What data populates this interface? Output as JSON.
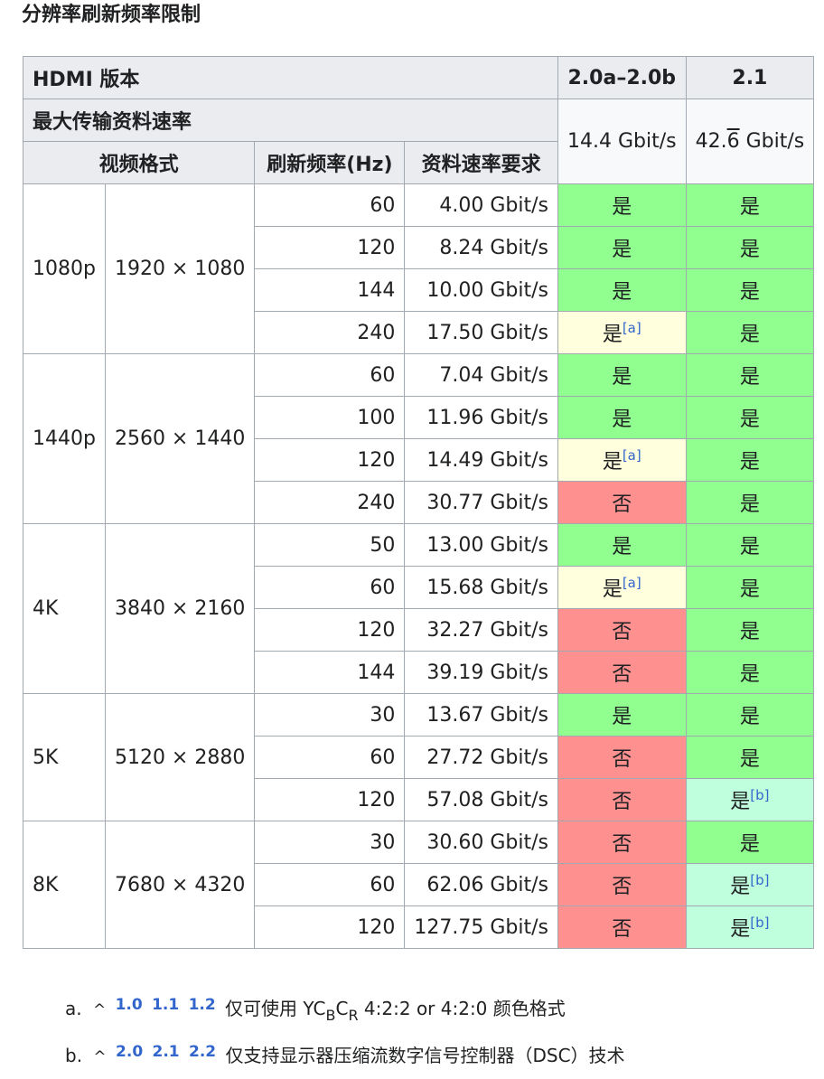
{
  "title": "分辨率刷新频率限制",
  "header": {
    "hdmi_version_label": "HDMI 版本",
    "version_a": "2.0a–2.0b",
    "version_b": "2.1",
    "max_rate_label": "最大传输资料速率",
    "rate_a": "14.4 Gbit/s",
    "rate_b_int": "42.",
    "rate_b_repeat": "6",
    "rate_b_unit": " Gbit/s",
    "video_format_label": "视频格式",
    "refresh_label": "刷新频率(Hz)",
    "data_rate_label": "资料速率要求"
  },
  "status_colors": {
    "yes": "#90ff90",
    "partial": "#ffffdd",
    "no": "#ff9090",
    "dsc": "#bfffde"
  },
  "groups": [
    {
      "format": "1080p",
      "resolution": "1920 × 1080",
      "rows": [
        {
          "hz": "60",
          "rate": "4.00 Gbit/s",
          "a": {
            "text": "是",
            "ref": "",
            "status": "yes"
          },
          "b": {
            "text": "是",
            "ref": "",
            "status": "yes"
          }
        },
        {
          "hz": "120",
          "rate": "8.24 Gbit/s",
          "a": {
            "text": "是",
            "ref": "",
            "status": "yes"
          },
          "b": {
            "text": "是",
            "ref": "",
            "status": "yes"
          }
        },
        {
          "hz": "144",
          "rate": "10.00 Gbit/s",
          "a": {
            "text": "是",
            "ref": "",
            "status": "yes"
          },
          "b": {
            "text": "是",
            "ref": "",
            "status": "yes"
          }
        },
        {
          "hz": "240",
          "rate": "17.50 Gbit/s",
          "a": {
            "text": "是",
            "ref": "[a]",
            "status": "partial"
          },
          "b": {
            "text": "是",
            "ref": "",
            "status": "yes"
          }
        }
      ]
    },
    {
      "format": "1440p",
      "resolution": "2560 × 1440",
      "rows": [
        {
          "hz": "60",
          "rate": "7.04 Gbit/s",
          "a": {
            "text": "是",
            "ref": "",
            "status": "yes"
          },
          "b": {
            "text": "是",
            "ref": "",
            "status": "yes"
          }
        },
        {
          "hz": "100",
          "rate": "11.96 Gbit/s",
          "a": {
            "text": "是",
            "ref": "",
            "status": "yes"
          },
          "b": {
            "text": "是",
            "ref": "",
            "status": "yes"
          }
        },
        {
          "hz": "120",
          "rate": "14.49 Gbit/s",
          "a": {
            "text": "是",
            "ref": "[a]",
            "status": "partial"
          },
          "b": {
            "text": "是",
            "ref": "",
            "status": "yes"
          }
        },
        {
          "hz": "240",
          "rate": "30.77 Gbit/s",
          "a": {
            "text": "否",
            "ref": "",
            "status": "no"
          },
          "b": {
            "text": "是",
            "ref": "",
            "status": "yes"
          }
        }
      ]
    },
    {
      "format": "4K",
      "resolution": "3840 × 2160",
      "rows": [
        {
          "hz": "50",
          "rate": "13.00 Gbit/s",
          "a": {
            "text": "是",
            "ref": "",
            "status": "yes"
          },
          "b": {
            "text": "是",
            "ref": "",
            "status": "yes"
          }
        },
        {
          "hz": "60",
          "rate": "15.68 Gbit/s",
          "a": {
            "text": "是",
            "ref": "[a]",
            "status": "partial"
          },
          "b": {
            "text": "是",
            "ref": "",
            "status": "yes"
          }
        },
        {
          "hz": "120",
          "rate": "32.27 Gbit/s",
          "a": {
            "text": "否",
            "ref": "",
            "status": "no"
          },
          "b": {
            "text": "是",
            "ref": "",
            "status": "yes"
          }
        },
        {
          "hz": "144",
          "rate": "39.19 Gbit/s",
          "a": {
            "text": "否",
            "ref": "",
            "status": "no"
          },
          "b": {
            "text": "是",
            "ref": "",
            "status": "yes"
          }
        }
      ]
    },
    {
      "format": "5K",
      "resolution": "5120 × 2880",
      "rows": [
        {
          "hz": "30",
          "rate": "13.67 Gbit/s",
          "a": {
            "text": "是",
            "ref": "",
            "status": "yes"
          },
          "b": {
            "text": "是",
            "ref": "",
            "status": "yes"
          }
        },
        {
          "hz": "60",
          "rate": "27.72 Gbit/s",
          "a": {
            "text": "否",
            "ref": "",
            "status": "no"
          },
          "b": {
            "text": "是",
            "ref": "",
            "status": "yes"
          }
        },
        {
          "hz": "120",
          "rate": "57.08 Gbit/s",
          "a": {
            "text": "否",
            "ref": "",
            "status": "no"
          },
          "b": {
            "text": "是",
            "ref": "[b]",
            "status": "dsc"
          }
        }
      ]
    },
    {
      "format": "8K",
      "resolution": "7680 × 4320",
      "rows": [
        {
          "hz": "30",
          "rate": "30.60 Gbit/s",
          "a": {
            "text": "否",
            "ref": "",
            "status": "no"
          },
          "b": {
            "text": "是",
            "ref": "",
            "status": "yes"
          }
        },
        {
          "hz": "60",
          "rate": "62.06 Gbit/s",
          "a": {
            "text": "否",
            "ref": "",
            "status": "no"
          },
          "b": {
            "text": "是",
            "ref": "[b]",
            "status": "dsc"
          }
        },
        {
          "hz": "120",
          "rate": "127.75 Gbit/s",
          "a": {
            "text": "否",
            "ref": "",
            "status": "no"
          },
          "b": {
            "text": "是",
            "ref": "[b]",
            "status": "dsc"
          }
        }
      ]
    }
  ],
  "notes": [
    {
      "marker": "a.",
      "caret": "^",
      "backlinks": [
        "1.0",
        "1.1",
        "1.2"
      ],
      "text_before": "仅可使用 YC",
      "sub1": "B",
      "mid": "C",
      "sub2": "R",
      "text_after": " 4:2:2 or 4:2:0 颜色格式"
    },
    {
      "marker": "b.",
      "caret": "^",
      "backlinks": [
        "2.0",
        "2.1",
        "2.2"
      ],
      "text": "仅支持显示器压缩流数字信号控制器（DSC）技术"
    }
  ]
}
